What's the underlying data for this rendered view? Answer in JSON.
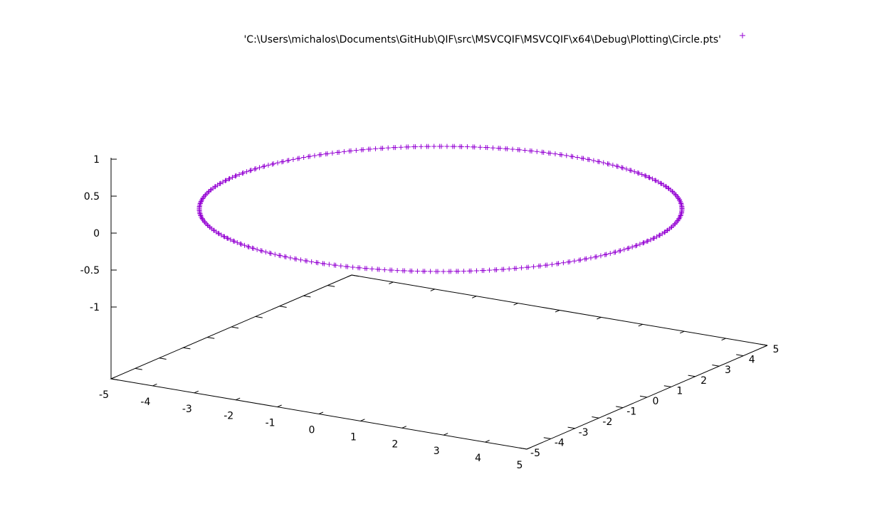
{
  "chart_data": {
    "type": "scatter3d",
    "title": "",
    "legend": {
      "position": "top-right",
      "entries": [
        {
          "label": "'C:\\Users\\michalos\\Documents\\GitHub\\QIF\\src\\MSVCQIF\\MSVCQIF\\x64\\Debug\\Plotting\\Circle.pts'",
          "marker": "+",
          "color": "#9400d3"
        }
      ]
    },
    "axes": {
      "x": {
        "range": [
          -5,
          5
        ],
        "ticks": [
          -5,
          -4,
          -3,
          -2,
          -1,
          0,
          1,
          2,
          3,
          4,
          5
        ]
      },
      "y": {
        "range": [
          -5,
          5
        ],
        "ticks": [
          -5,
          -4,
          -3,
          -2,
          -1,
          0,
          1,
          2,
          3,
          4,
          5
        ]
      },
      "z": {
        "range": [
          -1,
          1
        ],
        "ticks": [
          -1,
          -0.5,
          0,
          0.5,
          1
        ]
      }
    },
    "series": [
      {
        "marker": "+",
        "color": "#9400d3",
        "shape": "circle",
        "center": [
          0,
          0,
          0
        ],
        "radius": 5,
        "point_count": 360
      }
    ]
  }
}
